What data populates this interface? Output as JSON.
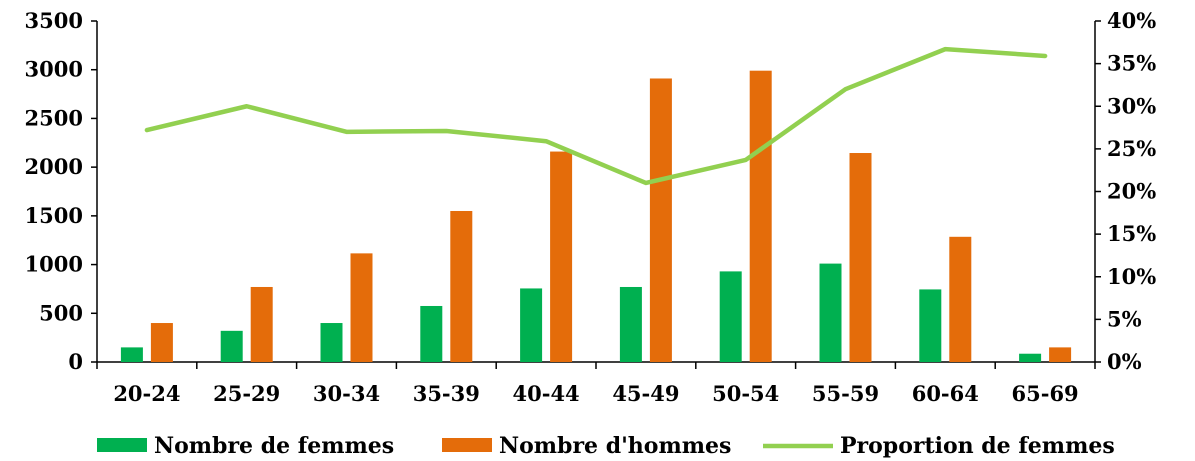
{
  "chart_data": {
    "type": "bar",
    "categories": [
      "20-24",
      "25-29",
      "30-34",
      "35-39",
      "40-44",
      "45-49",
      "50-54",
      "55-59",
      "60-64",
      "65-69"
    ],
    "series": [
      {
        "name": "Nombre de femmes",
        "kind": "bar",
        "axis": "left",
        "color": "#00B050",
        "values": [
          150,
          320,
          400,
          575,
          755,
          770,
          930,
          1010,
          745,
          85
        ]
      },
      {
        "name": "Nombre d'hommes",
        "kind": "bar",
        "axis": "left",
        "color": "#E46C0A",
        "values": [
          400,
          770,
          1115,
          1550,
          2160,
          2910,
          2990,
          2145,
          1285,
          150
        ]
      },
      {
        "name": "Proportion de femmes",
        "kind": "line",
        "axis": "right",
        "color": "#92D050",
        "values": [
          27.2,
          30.0,
          27.0,
          27.1,
          25.9,
          21.0,
          23.7,
          32.0,
          36.7,
          35.9
        ]
      }
    ],
    "y_left": {
      "min": 0,
      "max": 3500,
      "ticks": [
        0,
        500,
        1000,
        1500,
        2000,
        2500,
        3000,
        3500
      ]
    },
    "y_right": {
      "min": 0,
      "max": 40,
      "ticks": [
        0,
        5,
        10,
        15,
        20,
        25,
        30,
        35,
        40
      ],
      "tick_labels": [
        "0%",
        "5%",
        "10%",
        "15%",
        "20%",
        "25%",
        "30%",
        "35%",
        "40%"
      ]
    },
    "grid": false,
    "legend_position": "bottom"
  }
}
